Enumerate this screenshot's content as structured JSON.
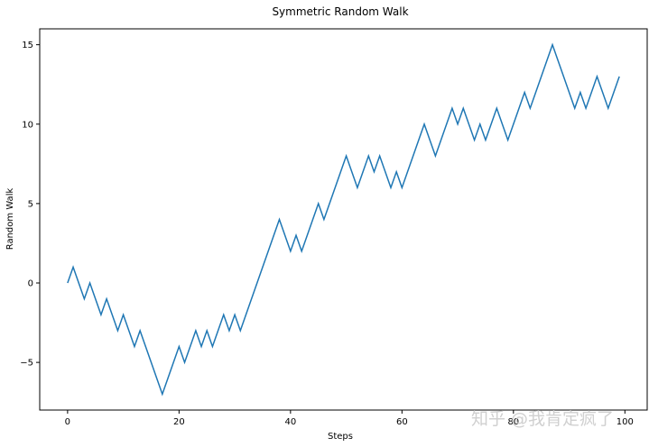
{
  "chart_data": {
    "type": "line",
    "title": "Symmetric Random Walk",
    "xlabel": "Steps",
    "ylabel": "Random Walk",
    "xlim": [
      -5,
      104
    ],
    "ylim": [
      -8,
      16
    ],
    "xticks": [
      0,
      20,
      40,
      60,
      80,
      100
    ],
    "yticks": [
      -5,
      0,
      5,
      10,
      15
    ],
    "grid": false,
    "legend": null,
    "line_color": "#1f77b4",
    "series": [
      {
        "name": "Random Walk",
        "x": [
          0,
          1,
          2,
          3,
          4,
          5,
          6,
          7,
          8,
          9,
          10,
          11,
          12,
          13,
          14,
          15,
          16,
          17,
          18,
          19,
          20,
          21,
          22,
          23,
          24,
          25,
          26,
          27,
          28,
          29,
          30,
          31,
          32,
          33,
          34,
          35,
          36,
          37,
          38,
          39,
          40,
          41,
          42,
          43,
          44,
          45,
          46,
          47,
          48,
          49,
          50,
          51,
          52,
          53,
          54,
          55,
          56,
          57,
          58,
          59,
          60,
          61,
          62,
          63,
          64,
          65,
          66,
          67,
          68,
          69,
          70,
          71,
          72,
          73,
          74,
          75,
          76,
          77,
          78,
          79,
          80,
          81,
          82,
          83,
          84,
          85,
          86,
          87,
          88,
          89,
          90,
          91,
          92,
          93,
          94,
          95,
          96,
          97,
          98,
          99
        ],
        "values": [
          0,
          1,
          0,
          -1,
          0,
          -1,
          -2,
          -1,
          -2,
          -3,
          -2,
          -3,
          -4,
          -3,
          -4,
          -5,
          -6,
          -7,
          -6,
          -5,
          -4,
          -5,
          -4,
          -3,
          -4,
          -3,
          -4,
          -3,
          -2,
          -3,
          -2,
          -3,
          -2,
          -1,
          0,
          1,
          2,
          3,
          4,
          3,
          2,
          3,
          2,
          3,
          4,
          5,
          4,
          5,
          6,
          7,
          8,
          7,
          6,
          7,
          8,
          7,
          8,
          7,
          6,
          7,
          6,
          7,
          8,
          9,
          10,
          9,
          8,
          9,
          10,
          11,
          10,
          11,
          10,
          9,
          10,
          9,
          10,
          11,
          10,
          9,
          10,
          11,
          12,
          11,
          12,
          13,
          14,
          15,
          14,
          13,
          12,
          11,
          12,
          11,
          12,
          13,
          12,
          11,
          12,
          13
        ]
      }
    ]
  },
  "watermark": "知乎 @我肯定疯了"
}
